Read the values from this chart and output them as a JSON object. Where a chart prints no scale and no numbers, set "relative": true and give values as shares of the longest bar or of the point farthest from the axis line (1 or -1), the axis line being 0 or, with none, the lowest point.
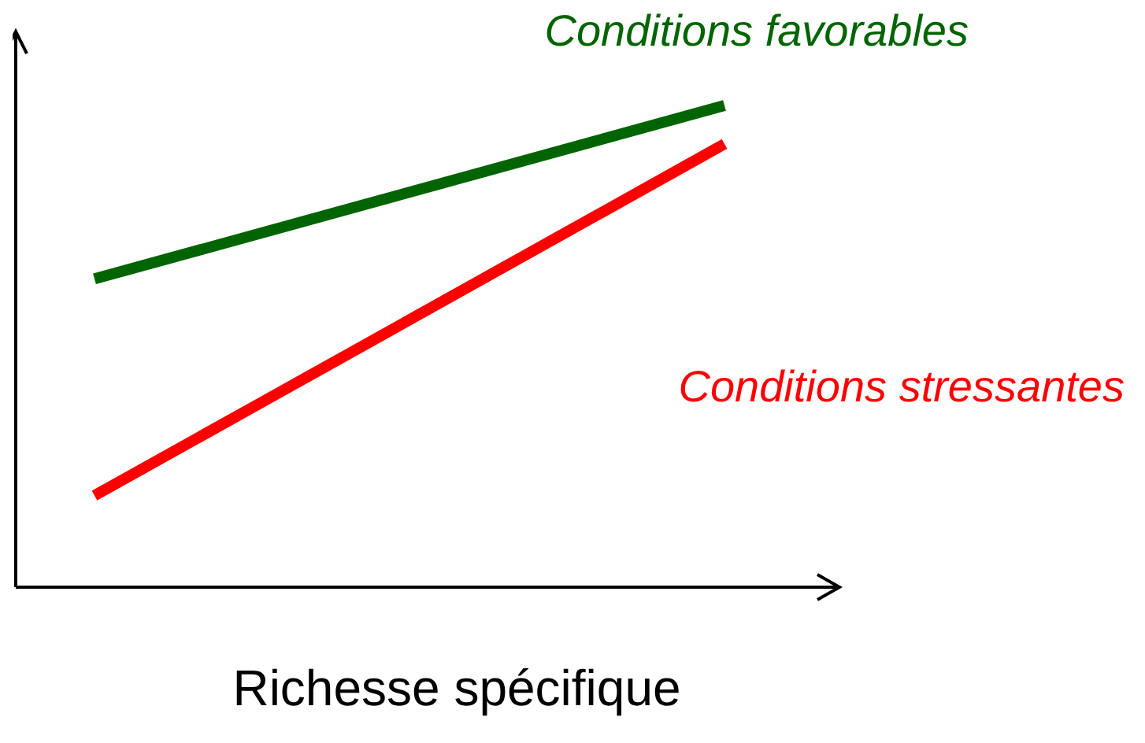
{
  "chart_data": {
    "type": "line",
    "relative": true,
    "xlabel": "Richesse spécifique",
    "categories": [
      null,
      null
    ],
    "series": [
      {
        "name": "Conditions favorables",
        "color": "#006400",
        "values": [
          0.64,
          1
        ]
      },
      {
        "name": "Conditions stressantes",
        "color": "#ff0000",
        "values": [
          0.19,
          0.92
        ]
      }
    ]
  }
}
